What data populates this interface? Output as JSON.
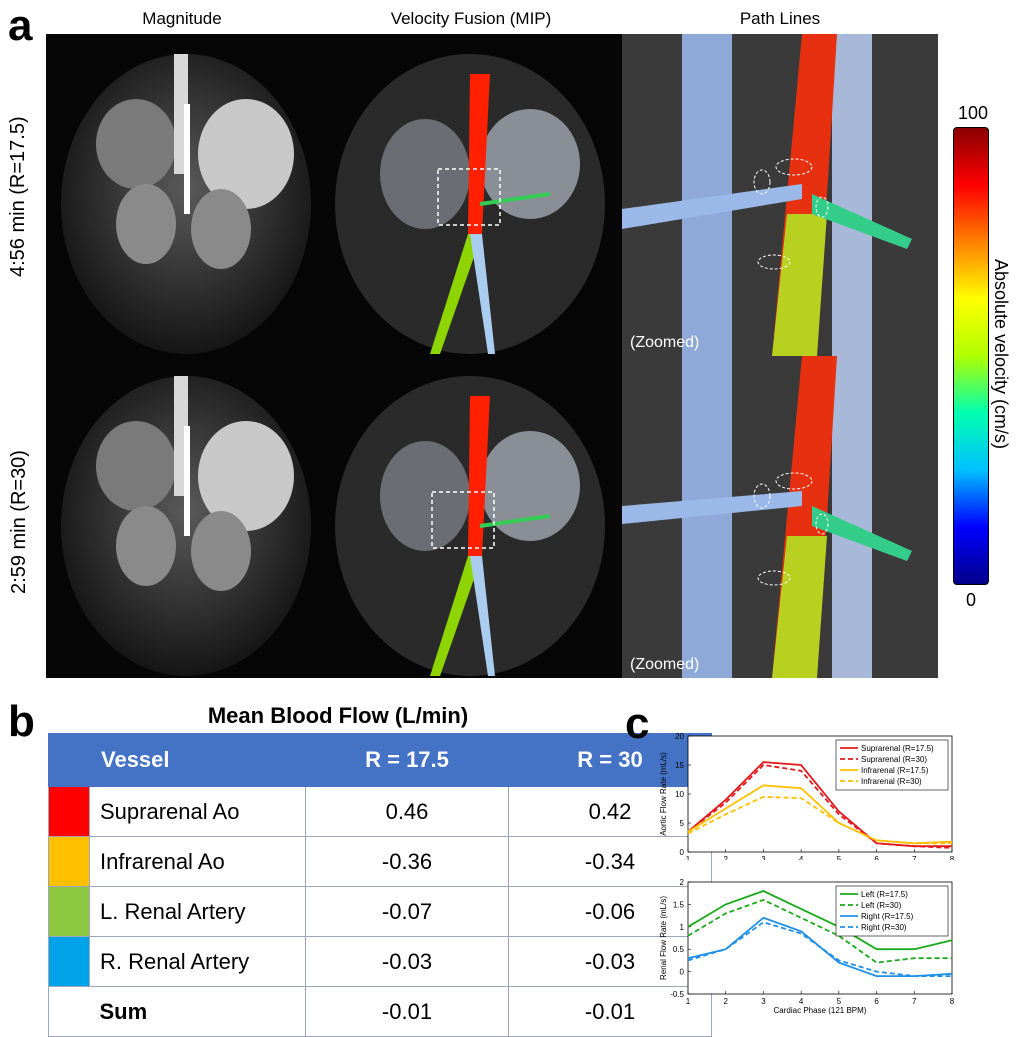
{
  "panel_a": {
    "letter": "a",
    "columns": [
      "Magnitude",
      "Velocity Fusion (MIP)",
      "Path Lines"
    ],
    "rows": [
      "4:56 min (R=17.5)",
      "2:59 min (R=30)"
    ],
    "zoomed_label": "(Zoomed)",
    "colorbar": {
      "max_label": "100",
      "min_label": "0",
      "title": "Absolute velocity (cm/s)",
      "colors": [
        "#00008b",
        "#0000ff",
        "#00c0ff",
        "#00ffb0",
        "#b0ff00",
        "#ffff00",
        "#ff8000",
        "#ff0000",
        "#8b0000"
      ]
    }
  },
  "panel_b": {
    "letter": "b",
    "title": "Mean Blood Flow (L/min)",
    "headers": [
      "Vessel",
      "R = 17.5",
      "R = 30"
    ],
    "rows": [
      {
        "vessel": "Suprarenal Ao",
        "r175": "0.46",
        "r30": "0.42",
        "color": "#ff0000"
      },
      {
        "vessel": "Infrarenal Ao",
        "r175": "-0.36",
        "r30": "-0.34",
        "color": "#ffc000"
      },
      {
        "vessel": "L. Renal Artery",
        "r175": "-0.07",
        "r30": "-0.06",
        "color": "#8dc63f"
      },
      {
        "vessel": "R. Renal Artery",
        "r175": "-0.03",
        "r30": "-0.03",
        "color": "#00a2e8"
      },
      {
        "vessel": "Sum",
        "r175": "-0.01",
        "r30": "-0.01",
        "color": "#ffffff"
      }
    ]
  },
  "panel_c": {
    "letter": "c"
  },
  "chart_data": [
    {
      "type": "line",
      "ylabel": "Aortic Flow Rate (mL/s)",
      "xlabel": "",
      "xlim": [
        1,
        8
      ],
      "ylim": [
        0,
        20
      ],
      "xticks": [
        "1",
        "2",
        "3",
        "4",
        "5",
        "6",
        "7",
        "8"
      ],
      "yticks": [
        "0",
        "5",
        "10",
        "15",
        "20"
      ],
      "x": [
        1,
        2,
        3,
        4,
        5,
        6,
        7,
        8
      ],
      "legend_position": "top-right",
      "series": [
        {
          "name": "Suprarenal (R=17.5)",
          "color": "#e41a1c",
          "dash": false,
          "values": [
            3.5,
            9.0,
            15.5,
            15.0,
            7.0,
            1.5,
            1.0,
            1.0
          ]
        },
        {
          "name": "Suprarenal (R=30)",
          "color": "#e41a1c",
          "dash": true,
          "values": [
            3.5,
            8.5,
            15.0,
            14.0,
            6.5,
            1.5,
            1.0,
            0.7
          ]
        },
        {
          "name": "Infrarenal (R=17.5)",
          "color": "#ffc000",
          "dash": false,
          "values": [
            3.5,
            7.5,
            11.5,
            11.0,
            5.0,
            2.0,
            1.5,
            1.8
          ]
        },
        {
          "name": "Infrarenal (R=30)",
          "color": "#ffc000",
          "dash": true,
          "values": [
            3.2,
            6.5,
            9.5,
            9.3,
            5.0,
            2.0,
            1.5,
            1.5
          ]
        }
      ]
    },
    {
      "type": "line",
      "ylabel": "Renal Flow Rate (mL/s)",
      "xlabel": "Cardiac Phase (121 BPM)",
      "xlim": [
        1,
        8
      ],
      "ylim": [
        -0.5,
        2
      ],
      "xticks": [
        "1",
        "2",
        "3",
        "4",
        "5",
        "6",
        "7",
        "8"
      ],
      "yticks": [
        "-0.5",
        "0",
        "0.5",
        "1",
        "1.5",
        "2"
      ],
      "x": [
        1,
        2,
        3,
        4,
        5,
        6,
        7,
        8
      ],
      "legend_position": "top-right",
      "series": [
        {
          "name": "Left (R=17.5)",
          "color": "#1aaa1a",
          "dash": false,
          "values": [
            1.0,
            1.5,
            1.8,
            1.4,
            1.0,
            0.5,
            0.5,
            0.7
          ]
        },
        {
          "name": "Left (R=30)",
          "color": "#1aaa1a",
          "dash": true,
          "values": [
            0.8,
            1.3,
            1.6,
            1.2,
            0.8,
            0.2,
            0.3,
            0.3
          ]
        },
        {
          "name": "Right (R=17.5)",
          "color": "#1f8fe8",
          "dash": false,
          "values": [
            0.3,
            0.5,
            1.2,
            0.9,
            0.2,
            -0.1,
            -0.1,
            -0.05
          ]
        },
        {
          "name": "Right (R=30)",
          "color": "#1f8fe8",
          "dash": true,
          "values": [
            0.25,
            0.5,
            1.1,
            0.85,
            0.25,
            0.0,
            -0.1,
            -0.1
          ]
        }
      ]
    }
  ]
}
